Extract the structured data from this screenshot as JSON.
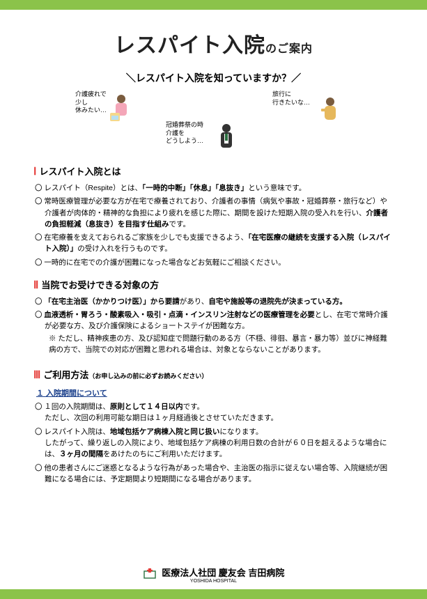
{
  "colors": {
    "accent_bar": "#8bc34a",
    "roman": "#e53935",
    "subheading": "#1a3f8b",
    "text": "#222222"
  },
  "title_main": "レスパイト入院",
  "title_sub": "のご案内",
  "subtitle": "＼レスパイト入院を知っていますか？／",
  "illus": {
    "left": {
      "l1": "介護疲れで",
      "l2": "少し",
      "l3": "休みたい…"
    },
    "right": {
      "l1": "旅行に",
      "l2": "行きたいな…"
    },
    "center": {
      "l1": "冠婚葬祭の時",
      "l2": "介護を",
      "l3": "どうしよう…"
    }
  },
  "sec1": {
    "num": "Ⅰ",
    "title": "レスパイト入院とは",
    "items": [
      "レスパイト（Respite）とは、<span class=\"bold\">「一時的中断」「休息」「息抜き」</span>という意味です。",
      "常時医療管理が必要な方が在宅で療養されており、介護者の事情（病気や事故・冠婚葬祭・旅行など）や介護者が肉体的・精神的な負担により疲れを感じた際に、期間を設けた短期入院の受入れを行い、<span class=\"bold\">介護者の負担軽減（息抜き）を目指す仕組み</span>です。",
      "在宅療養を支えておられるご家族を少しでも支援できるよう、<span class=\"bold\">「在宅医療の継続を支援する入院（レスパイト入院）」</span>の受け入れを行うものです。",
      "一時的に在宅での介護が困難になった場合などお気軽にご相談ください。"
    ]
  },
  "sec2": {
    "num": "Ⅱ",
    "title": "当院でお受けできる対象の方",
    "items": [
      "<span class=\"bold\">「在宅主治医（かかりつけ医）」から要請</span>があり、<span class=\"bold\">自宅や施設等の退院先が決まっている方。</span>",
      "<span class=\"bold\">血液透析・胃ろう・酸素吸入・吸引・点滴・インスリン注射などの医療管理を必要</span>とし、在宅で常時介護が必要な方、及び介護保険によるショートステイが困難な方。"
    ],
    "note": "※ ただし、精神疾患の方、及び認知症で問題行動のある方（不穏、徘徊、暴言・暴力等）並びに神経難病の方で、当院での対応が困難と思われる場合は、対象とならないことがあります。"
  },
  "sec3": {
    "num": "Ⅲ",
    "title": "ご利用方法",
    "title_note": "（お申し込みの前に必ずお読みください）",
    "subheading": "１ 入院期間について",
    "items": [
      "１回の入院期間は、<span class=\"bold\">原則として１４日以内</span>です。<br>ただし、次回の利用可能な期日は１ヶ月経過後とさせていただきます。",
      "レスパイト入院は、<span class=\"bold\">地域包括ケア病棟入院と同じ扱い</span>になります。<br>したがって、繰り返しの入院により、地域包括ケア病棟の利用日数の合計が６０日を超えるような場合には、<span class=\"bold\">３ヶ月の間隔</span>をあけたのちにご利用いただけます。",
      "他の患者さんにご迷惑となるような行為があった場合や、主治医の指示に従えない場合等、入院継続が困難になる場合には、予定期間より短期間になる場合があります。"
    ]
  },
  "footer": {
    "org": "医療法人社団 慶友会 吉田病院",
    "org_en": "YOSHIDA HOSPITAL"
  }
}
